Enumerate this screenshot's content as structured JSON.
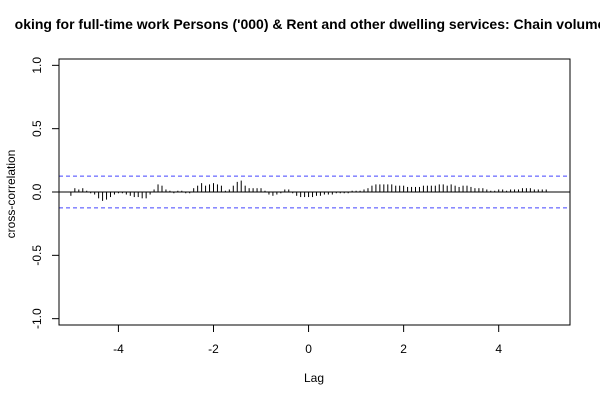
{
  "chart_data": {
    "type": "bar",
    "subtype": "cross-correlation",
    "title": "oking for full-time work Persons ('000) & Rent and other dwelling services: Chain volume",
    "xlabel": "Lag",
    "ylabel": "cross-correlation",
    "xlim": [
      -5.25,
      5.5
    ],
    "ylim": [
      -1.05,
      1.05
    ],
    "x_ticks": [
      -4,
      -2,
      0,
      2,
      4
    ],
    "y_ticks": [
      -1.0,
      -0.5,
      0.0,
      0.5,
      1.0
    ],
    "y_tick_labels": [
      "-1.0",
      "-0.5",
      "0.0",
      "0.5",
      "1.0"
    ],
    "confidence_band": 0.125,
    "lag_start": -5.0,
    "lag_step": 0.083333,
    "values": [
      -0.03,
      0.03,
      0.02,
      0.03,
      0.01,
      -0.01,
      -0.02,
      -0.05,
      -0.07,
      -0.06,
      -0.04,
      -0.02,
      -0.01,
      -0.01,
      -0.02,
      -0.03,
      -0.04,
      -0.04,
      -0.05,
      -0.05,
      -0.02,
      0.02,
      0.06,
      0.05,
      0.02,
      0.01,
      -0.01,
      0.01,
      0.01,
      -0.01,
      -0.01,
      0.03,
      0.05,
      0.07,
      0.05,
      0.06,
      0.07,
      0.06,
      0.05,
      0.01,
      0.02,
      0.05,
      0.08,
      0.09,
      0.05,
      0.03,
      0.03,
      0.03,
      0.03,
      0.01,
      -0.02,
      -0.03,
      -0.02,
      -0.01,
      0.02,
      0.02,
      -0.01,
      -0.03,
      -0.04,
      -0.04,
      -0.04,
      -0.04,
      -0.03,
      -0.03,
      -0.02,
      -0.02,
      -0.02,
      -0.01,
      -0.01,
      -0.01,
      -0.01,
      0.01,
      0.01,
      0.01,
      0.02,
      0.03,
      0.05,
      0.06,
      0.06,
      0.06,
      0.06,
      0.06,
      0.05,
      0.05,
      0.05,
      0.04,
      0.04,
      0.04,
      0.04,
      0.05,
      0.05,
      0.05,
      0.05,
      0.06,
      0.06,
      0.05,
      0.06,
      0.05,
      0.04,
      0.05,
      0.05,
      0.04,
      0.03,
      0.03,
      0.03,
      0.02,
      0.01,
      0.01,
      0.02,
      0.02,
      0.01,
      0.02,
      0.02,
      0.02,
      0.03,
      0.03,
      0.03,
      0.02,
      0.02,
      0.02,
      0.02
    ],
    "colors": {
      "bars": "#000000",
      "zero_line": "#000000",
      "confidence_band": "#4444ff",
      "box": "#000000"
    },
    "grid": false
  }
}
